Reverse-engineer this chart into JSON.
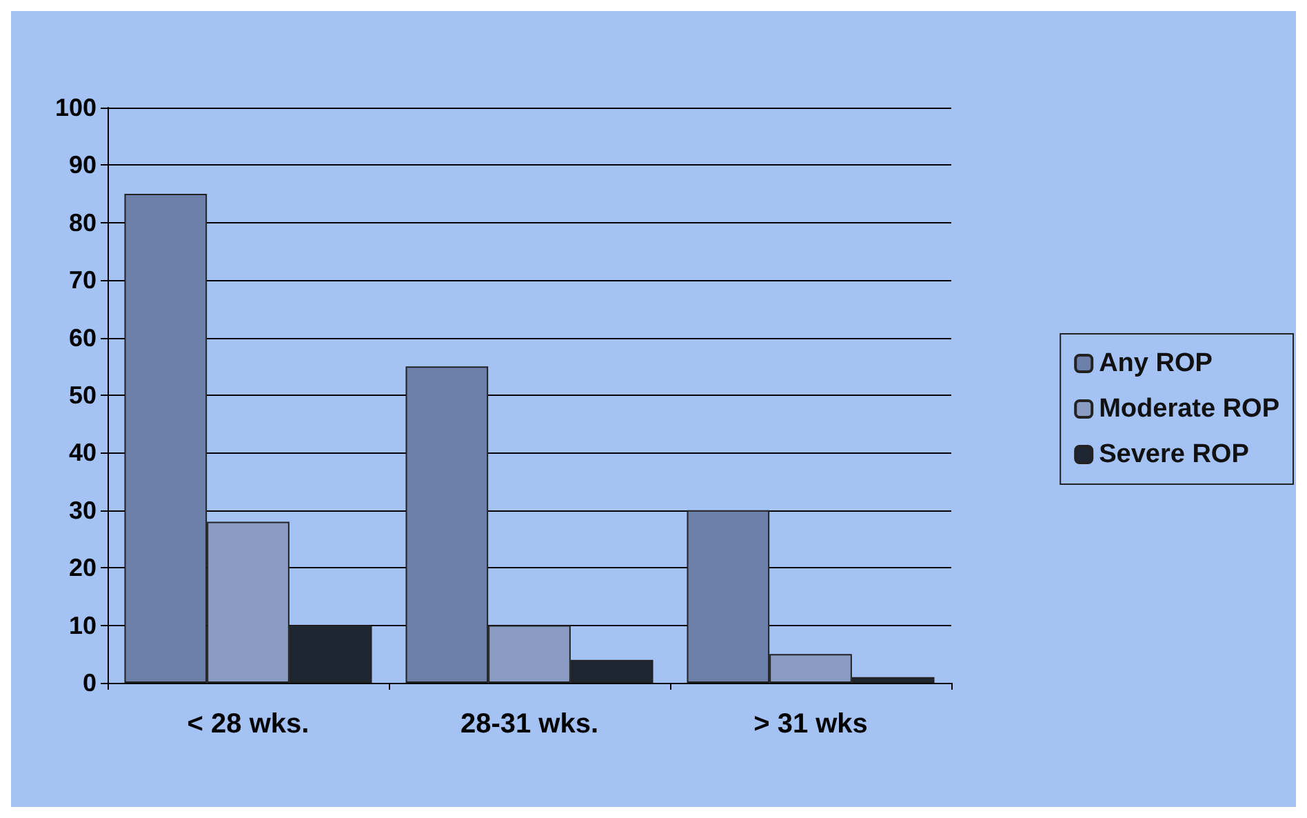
{
  "chart_data": {
    "type": "bar",
    "categories": [
      "< 28 wks.",
      "28-31 wks.",
      "> 31 wks"
    ],
    "series": [
      {
        "name": "Any ROP",
        "color": "#6b7fa8",
        "values": [
          85,
          55,
          30
        ]
      },
      {
        "name": "Moderate ROP",
        "color": "#8a9cc2",
        "values": [
          28,
          10,
          5
        ]
      },
      {
        "name": "Severe ROP",
        "color": "#1e2533",
        "values": [
          10,
          4,
          1
        ]
      }
    ],
    "ylim": [
      0,
      100
    ],
    "yticks": [
      0,
      10,
      20,
      30,
      40,
      50,
      60,
      70,
      80,
      90,
      100
    ],
    "grid": "y",
    "legend": "right"
  }
}
